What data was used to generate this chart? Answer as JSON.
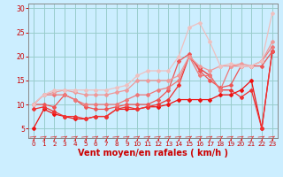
{
  "bg_color": "#cceeff",
  "grid_color": "#99cccc",
  "xlabel": "Vent moyen/en rafales ( km/h )",
  "xlabel_color": "#cc0000",
  "xlabel_fontsize": 7,
  "tick_color": "#cc0000",
  "ylim": [
    3,
    31
  ],
  "xlim": [
    -0.5,
    23.5
  ],
  "yticks": [
    5,
    10,
    15,
    20,
    25,
    30
  ],
  "xticks": [
    0,
    1,
    2,
    3,
    4,
    5,
    6,
    7,
    8,
    9,
    10,
    11,
    12,
    13,
    14,
    15,
    16,
    17,
    18,
    19,
    20,
    21,
    22,
    23
  ],
  "lines": [
    {
      "x": [
        0,
        1,
        2,
        3,
        4,
        5,
        6,
        7,
        8,
        9,
        10,
        11,
        12,
        13,
        14,
        15,
        16,
        17,
        18,
        19,
        20,
        21,
        22,
        23
      ],
      "y": [
        5,
        9,
        8,
        7.5,
        7,
        7,
        7.5,
        7.5,
        9,
        9,
        9,
        9.5,
        9.5,
        10,
        11,
        11,
        11,
        11,
        12,
        12,
        13,
        15,
        5,
        21
      ],
      "color": "#ee1111",
      "lw": 0.9,
      "marker": "D",
      "ms": 2.0
    },
    {
      "x": [
        0,
        1,
        2,
        3,
        4,
        5,
        6,
        7,
        8,
        9,
        10,
        11,
        12,
        13,
        14,
        15,
        16,
        17,
        18,
        19,
        20,
        21,
        22,
        23
      ],
      "y": [
        9,
        9.5,
        8.5,
        7.5,
        7.5,
        7,
        7.5,
        7.5,
        9,
        9.5,
        9,
        9.5,
        10,
        11,
        14,
        20,
        17.5,
        16,
        13,
        13,
        11.5,
        13,
        5,
        21
      ],
      "color": "#ee3333",
      "lw": 0.9,
      "marker": "D",
      "ms": 2.0
    },
    {
      "x": [
        0,
        1,
        2,
        3,
        4,
        5,
        6,
        7,
        8,
        9,
        10,
        11,
        12,
        13,
        14,
        15,
        16,
        17,
        18,
        19,
        20,
        21,
        22,
        23
      ],
      "y": [
        10,
        10,
        9.5,
        12,
        11,
        9.5,
        9,
        9,
        9.5,
        10,
        10,
        10,
        11,
        13,
        19,
        20.5,
        17,
        15,
        13.5,
        14,
        18,
        18,
        18,
        21
      ],
      "color": "#ee5555",
      "lw": 0.9,
      "marker": "D",
      "ms": 2.0
    },
    {
      "x": [
        0,
        1,
        2,
        3,
        4,
        5,
        6,
        7,
        8,
        9,
        10,
        11,
        12,
        13,
        14,
        15,
        16,
        17,
        18,
        19,
        20,
        21,
        22,
        23
      ],
      "y": [
        10,
        12,
        12,
        12,
        11,
        10,
        10,
        10,
        10,
        11,
        12,
        12,
        13,
        13.5,
        15,
        20,
        16,
        16,
        13,
        18,
        18,
        18,
        19,
        22
      ],
      "color": "#ee7777",
      "lw": 0.9,
      "marker": "D",
      "ms": 2.0
    },
    {
      "x": [
        0,
        1,
        2,
        3,
        4,
        5,
        6,
        7,
        8,
        9,
        10,
        11,
        12,
        13,
        14,
        15,
        16,
        17,
        18,
        19,
        20,
        21,
        22,
        23
      ],
      "y": [
        10,
        12,
        12.5,
        13,
        12.5,
        12,
        12,
        12,
        12.5,
        13,
        15,
        15,
        15,
        15,
        16,
        20,
        18,
        17,
        18,
        18,
        18.5,
        18,
        19,
        23
      ],
      "color": "#ee9999",
      "lw": 0.9,
      "marker": "D",
      "ms": 2.0
    },
    {
      "x": [
        0,
        1,
        2,
        3,
        4,
        5,
        6,
        7,
        8,
        9,
        10,
        11,
        12,
        13,
        14,
        15,
        16,
        17,
        18,
        19,
        20,
        21,
        22,
        23
      ],
      "y": [
        10,
        12,
        13,
        13,
        13,
        13,
        13,
        13,
        13.5,
        14,
        16,
        17,
        17,
        17,
        20,
        26,
        27,
        23,
        18,
        18.5,
        18,
        18,
        19,
        29
      ],
      "color": "#eec0c0",
      "lw": 0.9,
      "marker": "D",
      "ms": 2.0
    }
  ],
  "spine_color": "#888888",
  "arrow_color": "#dd4444"
}
